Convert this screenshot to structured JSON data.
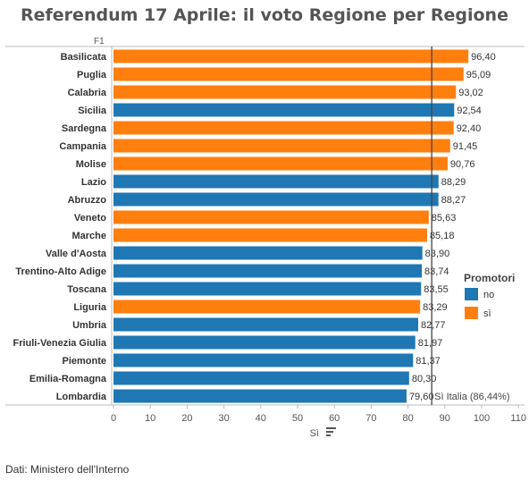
{
  "title": "Referendum 17 Aprile: il voto Regione per Regione",
  "footer": "Dati: Ministero dell'Interno",
  "chart_data": {
    "type": "bar",
    "orientation": "horizontal",
    "row_header": "F1",
    "xlabel": "Sì",
    "xlim": [
      0,
      110
    ],
    "xticks": [
      0,
      10,
      20,
      30,
      40,
      50,
      60,
      70,
      80,
      90,
      100,
      110
    ],
    "categories": [
      "Basilicata",
      "Puglia",
      "Calabria",
      "Sicilia",
      "Sardegna",
      "Campania",
      "Molise",
      "Lazio",
      "Abruzzo",
      "Veneto",
      "Marche",
      "Valle d'Aosta",
      "Trentino-Alto Adige",
      "Toscana",
      "Liguria",
      "Umbria",
      "Friuli-Venezia Giulia",
      "Piemonte",
      "Emilia-Romagna",
      "Lombardia"
    ],
    "values": [
      96.4,
      95.09,
      93.02,
      92.54,
      92.4,
      91.45,
      90.76,
      88.29,
      88.27,
      85.63,
      85.18,
      83.9,
      83.74,
      83.55,
      83.29,
      82.77,
      81.97,
      81.37,
      80.3,
      79.6
    ],
    "value_labels": [
      "96,40",
      "95,09",
      "93,02",
      "92,54",
      "92,40",
      "91,45",
      "90,76",
      "88,29",
      "88,27",
      "85,63",
      "85,18",
      "83,90",
      "83,74",
      "83,55",
      "83,29",
      "82,77",
      "81,97",
      "81,37",
      "80,30",
      "79,60"
    ],
    "promotori": [
      "sì",
      "sì",
      "sì",
      "no",
      "sì",
      "sì",
      "sì",
      "no",
      "no",
      "sì",
      "sì",
      "no",
      "no",
      "no",
      "sì",
      "no",
      "no",
      "no",
      "no",
      "no"
    ],
    "reference_line": {
      "value": 86.44,
      "label": "Sì Italia (86,44%)"
    },
    "legend": {
      "title": "Promotori",
      "position": "right",
      "items": [
        {
          "label": "no",
          "color": "#1f77b4"
        },
        {
          "label": "sì",
          "color": "#ff7f0e"
        }
      ]
    },
    "grid": false
  }
}
